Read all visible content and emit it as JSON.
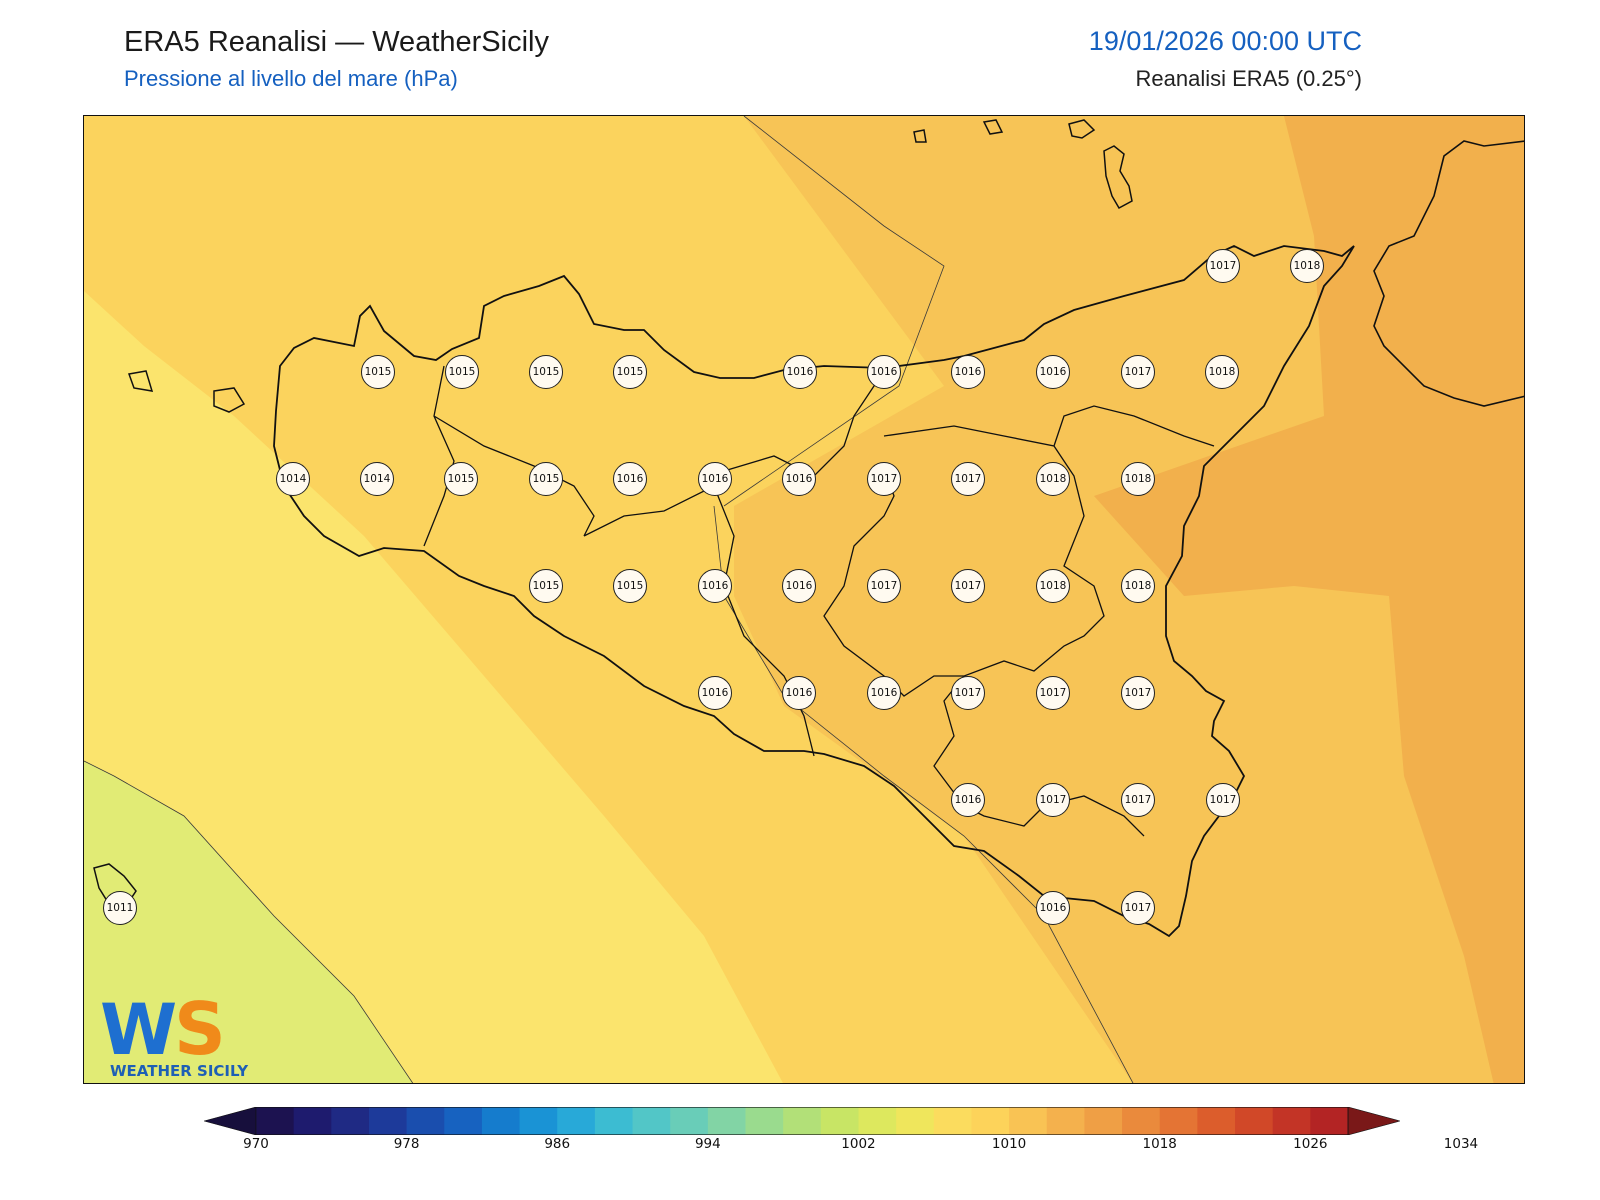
{
  "header": {
    "title": "ERA5 Reanalisi — WeatherSicily",
    "subtitle": "Pressione al livello del mare (hPa)",
    "datetime": "19/01/2026 00:00 UTC",
    "source": "Reanalisi ERA5 (0.25°)"
  },
  "logo": {
    "letters": "WS",
    "text": "WEATHER SICILY",
    "colors": {
      "w": "#1e6fd0",
      "s": "#f08a1a",
      "text": "#1e5fb5"
    }
  },
  "stations": [
    "1017",
    "1018",
    "1015",
    "1015",
    "1015",
    "1015",
    "1016",
    "1016",
    "1016",
    "1016",
    "1017",
    "1018",
    "1014",
    "1014",
    "1015",
    "1015",
    "1016",
    "1016",
    "1016",
    "1017",
    "1017",
    "1018",
    "1018",
    "1015",
    "1015",
    "1016",
    "1016",
    "1017",
    "1017",
    "1018",
    "1018",
    "1016",
    "1016",
    "1016",
    "1017",
    "1017",
    "1017",
    "1016",
    "1017",
    "1017",
    "1017",
    "1011",
    "1016",
    "1017"
  ],
  "colorbar": {
    "ticks": [
      "970",
      "978",
      "986",
      "994",
      "1002",
      "1010",
      "1018",
      "1026",
      "1034"
    ],
    "colors": [
      "#1c1250",
      "#1e1b6e",
      "#1f2a84",
      "#1d3a9a",
      "#1a4eae",
      "#1762c0",
      "#157ccd",
      "#1a93d5",
      "#28a9d8",
      "#3cbcd2",
      "#52c6c7",
      "#69cdb8",
      "#82d4a5",
      "#9adb8e",
      "#b2e078",
      "#c8e565",
      "#dde85e",
      "#efe65c",
      "#fbdc5e",
      "#fdd35a",
      "#f9c354",
      "#f4b14d",
      "#ef9f45",
      "#ea8a3c",
      "#e47434",
      "#dc5d2c",
      "#d14828",
      "#c33426",
      "#b32424"
    ],
    "min_color": "#170f3c",
    "max_color": "#7a1818"
  }
}
